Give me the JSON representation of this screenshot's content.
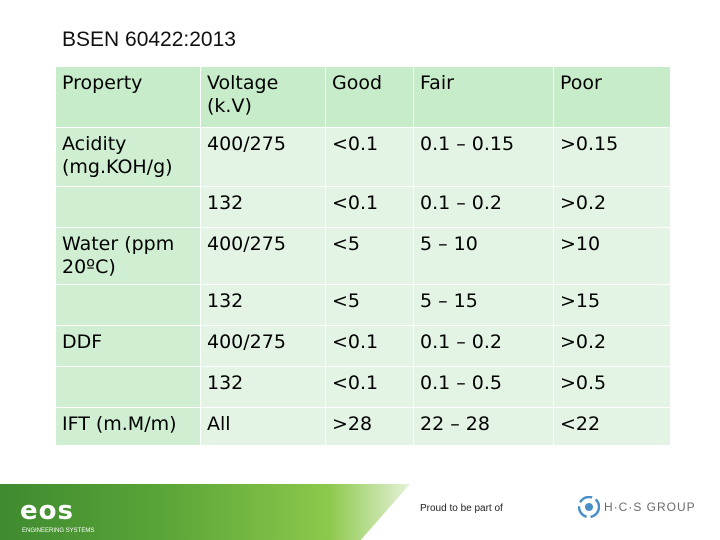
{
  "title": "BSEN 60422:2013",
  "table": {
    "headers": [
      "Property",
      "Voltage (k.V)",
      "Good",
      "Fair",
      "Poor"
    ],
    "rows": [
      {
        "property": "Acidity (mg.KOH/g)",
        "voltage": "400/275",
        "good": "<0.1",
        "fair": "0.1 – 0.15",
        "poor": ">0.15"
      },
      {
        "property": "",
        "voltage": "132",
        "good": "<0.1",
        "fair": "0.1 – 0.2",
        "poor": ">0.2"
      },
      {
        "property": "Water (ppm 20ºC)",
        "voltage": "400/275",
        "good": "<5",
        "fair": "5 – 10",
        "poor": ">10"
      },
      {
        "property": "",
        "voltage": "132",
        "good": "<5",
        "fair": "5 – 15",
        "poor": ">15"
      },
      {
        "property": "DDF",
        "voltage": "400/275",
        "good": "<0.1",
        "fair": "0.1 – 0.2",
        "poor": ">0.2"
      },
      {
        "property": "",
        "voltage": "132",
        "good": "<0.1",
        "fair": "0.1 – 0.5",
        "poor": ">0.5"
      },
      {
        "property": "IFT (m.M/m)",
        "voltage": "All",
        "good": ">28",
        "fair": "22 – 28",
        "poor": "<22"
      }
    ]
  },
  "footer": {
    "logo_text": "eos",
    "tagline": "ENGINEERING SYSTEMS",
    "proud_text": "Proud to be part of",
    "partner_name": "H·C·S GROUP"
  },
  "colors": {
    "header_green": "#c6ecc9",
    "cell_green": "#e3f4e4",
    "footer_green": "#5aa538"
  }
}
